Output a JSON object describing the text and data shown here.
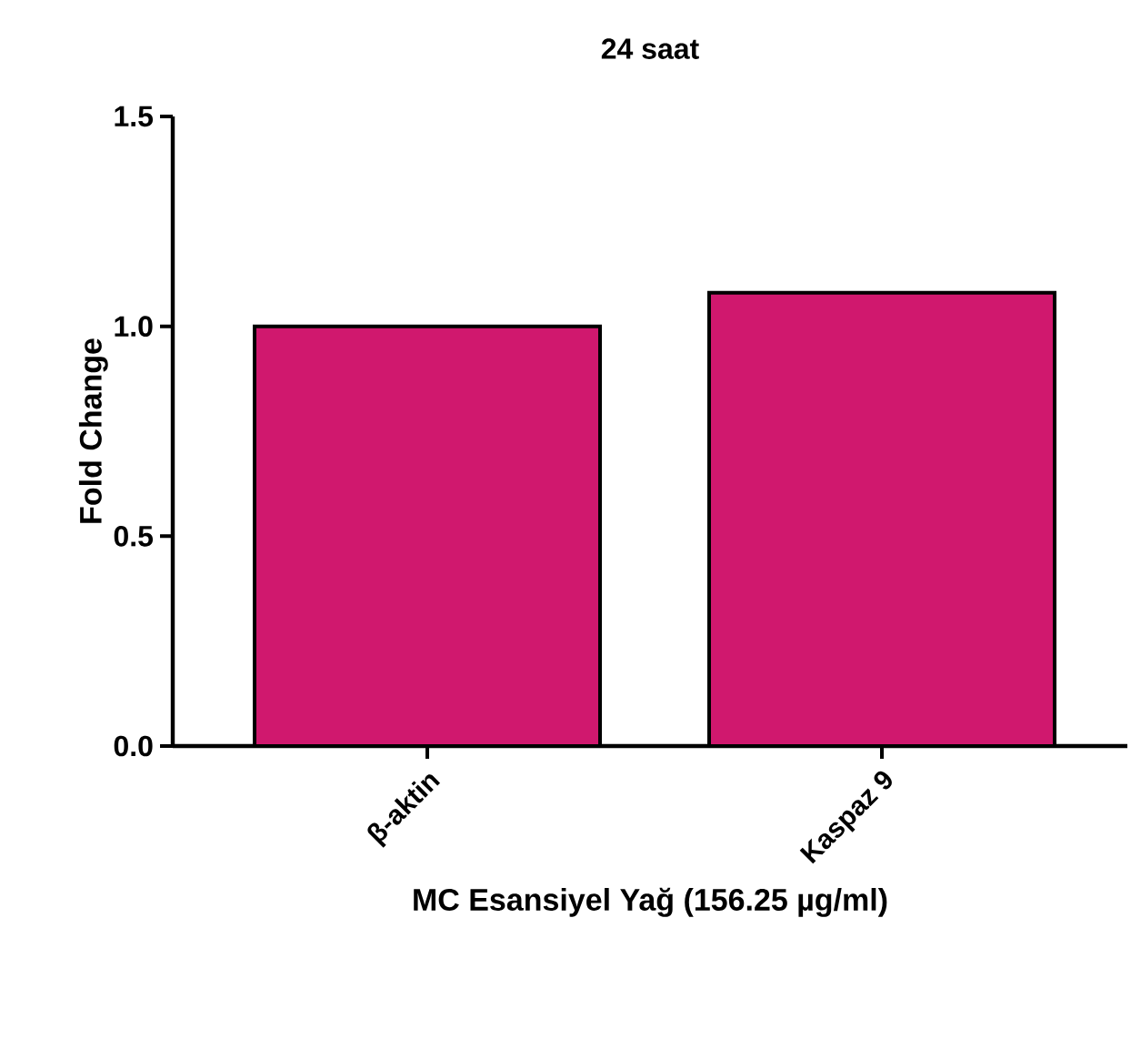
{
  "chart_data": {
    "type": "bar",
    "title": "24 saat",
    "xlabel": "MC Esansiyel Yağ (156.25 µg/ml)",
    "ylabel": "Fold Change",
    "categories": [
      "β-aktin",
      "Kaspaz 9"
    ],
    "values": [
      1.0,
      1.08
    ],
    "colors": [
      "#d0186e",
      "#d0186e"
    ],
    "ylim": [
      0,
      1.5
    ],
    "yticks": [
      {
        "value": 0,
        "label": "0.0"
      },
      {
        "value": 0.5,
        "label": "0.5"
      },
      {
        "value": 1,
        "label": "1.0"
      },
      {
        "value": 1.5,
        "label": "1.5"
      }
    ],
    "grid": false
  }
}
